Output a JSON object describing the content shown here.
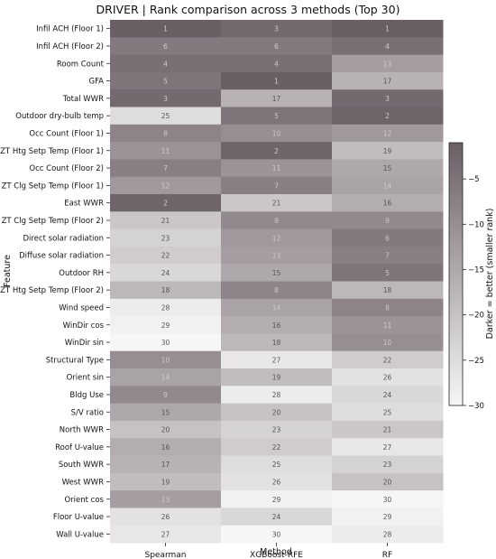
{
  "chart_data": {
    "type": "heatmap",
    "title": "DRIVER | Rank comparison across 3 methods (Top 30)",
    "xlabel": "Method",
    "ylabel": "Feature",
    "columns": [
      "Spearman",
      "XGBoost-RFE",
      "RF"
    ],
    "rows": [
      "Infil ACH (Floor 1)",
      "Infil ACH (Floor 2)",
      "Room Count",
      "GFA",
      "Total WWR",
      "Outdoor dry-bulb temp",
      "Occ Count (Floor 1)",
      "ZT Htg Setp Temp (Floor 1)",
      "Occ Count (Floor 2)",
      "ZT Clg Setp Temp (Floor 1)",
      "East WWR",
      "ZT Clg Setp Temp (Floor 2)",
      "Direct solar radiation",
      "Diffuse solar radiation",
      "Outdoor RH",
      "ZT Htg Setp Temp (Floor 2)",
      "Wind speed",
      "WinDir cos",
      "WinDir sin",
      "Structural Type",
      "Orient sin",
      "Bldg Use",
      "S/V ratio",
      "North WWR",
      "Roof U-value",
      "South WWR",
      "West WWR",
      "Orient cos",
      "Floor U-value",
      "Wall U-value"
    ],
    "values": [
      [
        1,
        3,
        1
      ],
      [
        6,
        6,
        4
      ],
      [
        4,
        4,
        13
      ],
      [
        5,
        1,
        17
      ],
      [
        3,
        17,
        3
      ],
      [
        25,
        5,
        2
      ],
      [
        8,
        10,
        12
      ],
      [
        11,
        2,
        19
      ],
      [
        7,
        11,
        15
      ],
      [
        12,
        7,
        14
      ],
      [
        2,
        21,
        16
      ],
      [
        21,
        9,
        9
      ],
      [
        23,
        12,
        6
      ],
      [
        22,
        13,
        7
      ],
      [
        24,
        15,
        5
      ],
      [
        18,
        8,
        18
      ],
      [
        28,
        14,
        8
      ],
      [
        29,
        16,
        11
      ],
      [
        30,
        18,
        10
      ],
      [
        10,
        27,
        22
      ],
      [
        14,
        19,
        26
      ],
      [
        9,
        28,
        24
      ],
      [
        15,
        20,
        25
      ],
      [
        20,
        23,
        21
      ],
      [
        16,
        22,
        27
      ],
      [
        17,
        25,
        23
      ],
      [
        19,
        26,
        20
      ],
      [
        13,
        29,
        30
      ],
      [
        26,
        24,
        29
      ],
      [
        27,
        30,
        28
      ]
    ],
    "colorbar": {
      "label": "Darker = better (smaller rank)",
      "range": [
        1,
        30
      ],
      "ticks": [
        -5,
        -10,
        -15,
        -20,
        -25,
        -30
      ],
      "tick_labels": [
        "−5",
        "−10",
        "−15",
        "−20",
        "−25",
        "−30"
      ],
      "color_dark": "#6b5f66",
      "color_light": "#f6f6f6"
    }
  }
}
